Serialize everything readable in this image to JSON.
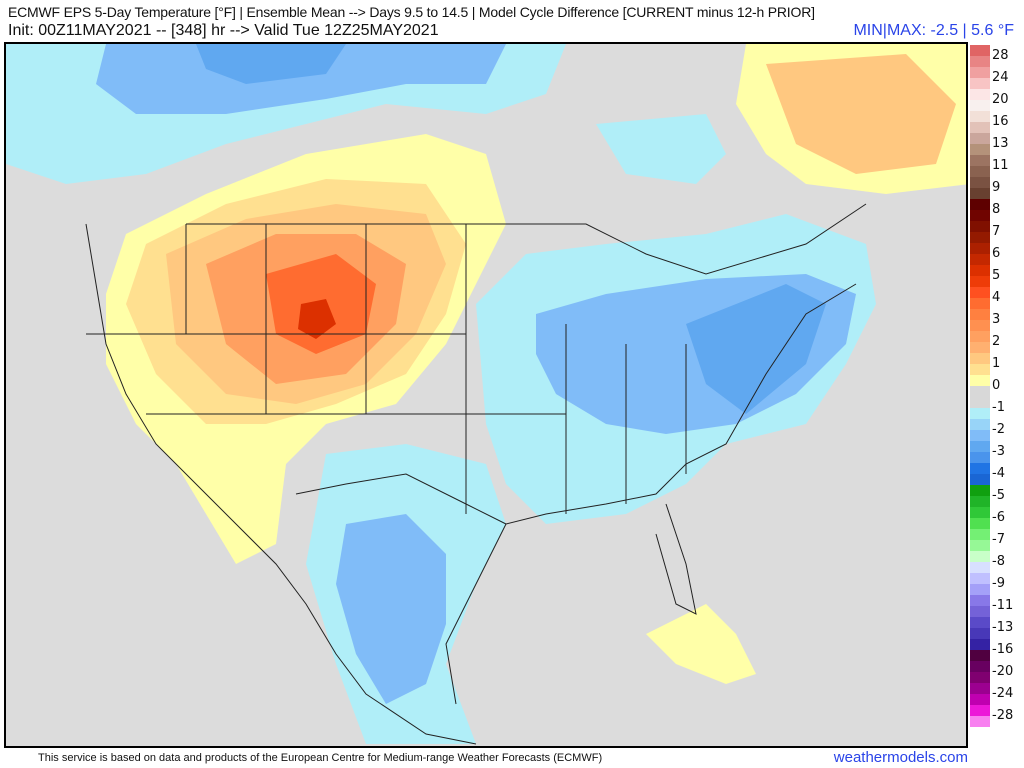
{
  "header": {
    "title": "ECMWF EPS 5-Day Temperature [°F] | Ensemble Mean --> Days 9.5 to 14.5 | Model Cycle Difference [CURRENT minus 12-h PRIOR]",
    "init_line": "Init: 00Z11MAY2021 -- [348] hr --> Valid Tue 12Z25MAY2021",
    "minmax": "MIN|MAX: -2.5 | 5.6 °F"
  },
  "map": {
    "region": "North America",
    "colors": {
      "land_background": "#dcdcdc",
      "border_lines": "#222222"
    }
  },
  "colorbar": {
    "unit": "°F",
    "labels": [
      "28",
      "24",
      "20",
      "16",
      "13",
      "11",
      "9",
      "8",
      "7",
      "6",
      "5",
      "4",
      "3",
      "2",
      "1",
      "0",
      "-1",
      "-2",
      "-3",
      "-4",
      "-5",
      "-6",
      "-7",
      "-8",
      "-9",
      "-11",
      "-13",
      "-16",
      "-20",
      "-24",
      "-28"
    ],
    "swatches": [
      "#e06464",
      "#e88484",
      "#f0a0a0",
      "#f8c4c4",
      "#fce6e6",
      "#f8f0ee",
      "#f2e0d8",
      "#e2c2b8",
      "#caa69c",
      "#b4927a",
      "#9c7462",
      "#8a6250",
      "#7a5242",
      "#684030",
      "#5e0000",
      "#700400",
      "#801000",
      "#941a00",
      "#ac2000",
      "#c42800",
      "#dc3000",
      "#ee3c08",
      "#ff5020",
      "#ff6c30",
      "#ff8040",
      "#ff9050",
      "#ffa060",
      "#ffb070",
      "#ffc880",
      "#ffe090",
      "#ffffa8",
      "#d8d8d8",
      "#d8d8d8",
      "#b0eef8",
      "#98d4f8",
      "#80bcf8",
      "#60a8f0",
      "#4a94ec",
      "#2074e4",
      "#1a66d4",
      "#10a010",
      "#20b428",
      "#30c838",
      "#50e050",
      "#74f074",
      "#96f896",
      "#c8ffc8",
      "#d8e0ff",
      "#c0c0ff",
      "#a4a0f8",
      "#8878e8",
      "#7462d8",
      "#5a4ac8",
      "#4838b8",
      "#3422a4",
      "#500040",
      "#680060",
      "#800070",
      "#9c0090",
      "#c000b0",
      "#ec18d8",
      "#f880f0"
    ]
  },
  "footer": {
    "disclaimer": "This service is based on data and products of the European Centre for Medium-range Weather Forecasts (ECMWF)",
    "site": "weathermodels.com"
  }
}
